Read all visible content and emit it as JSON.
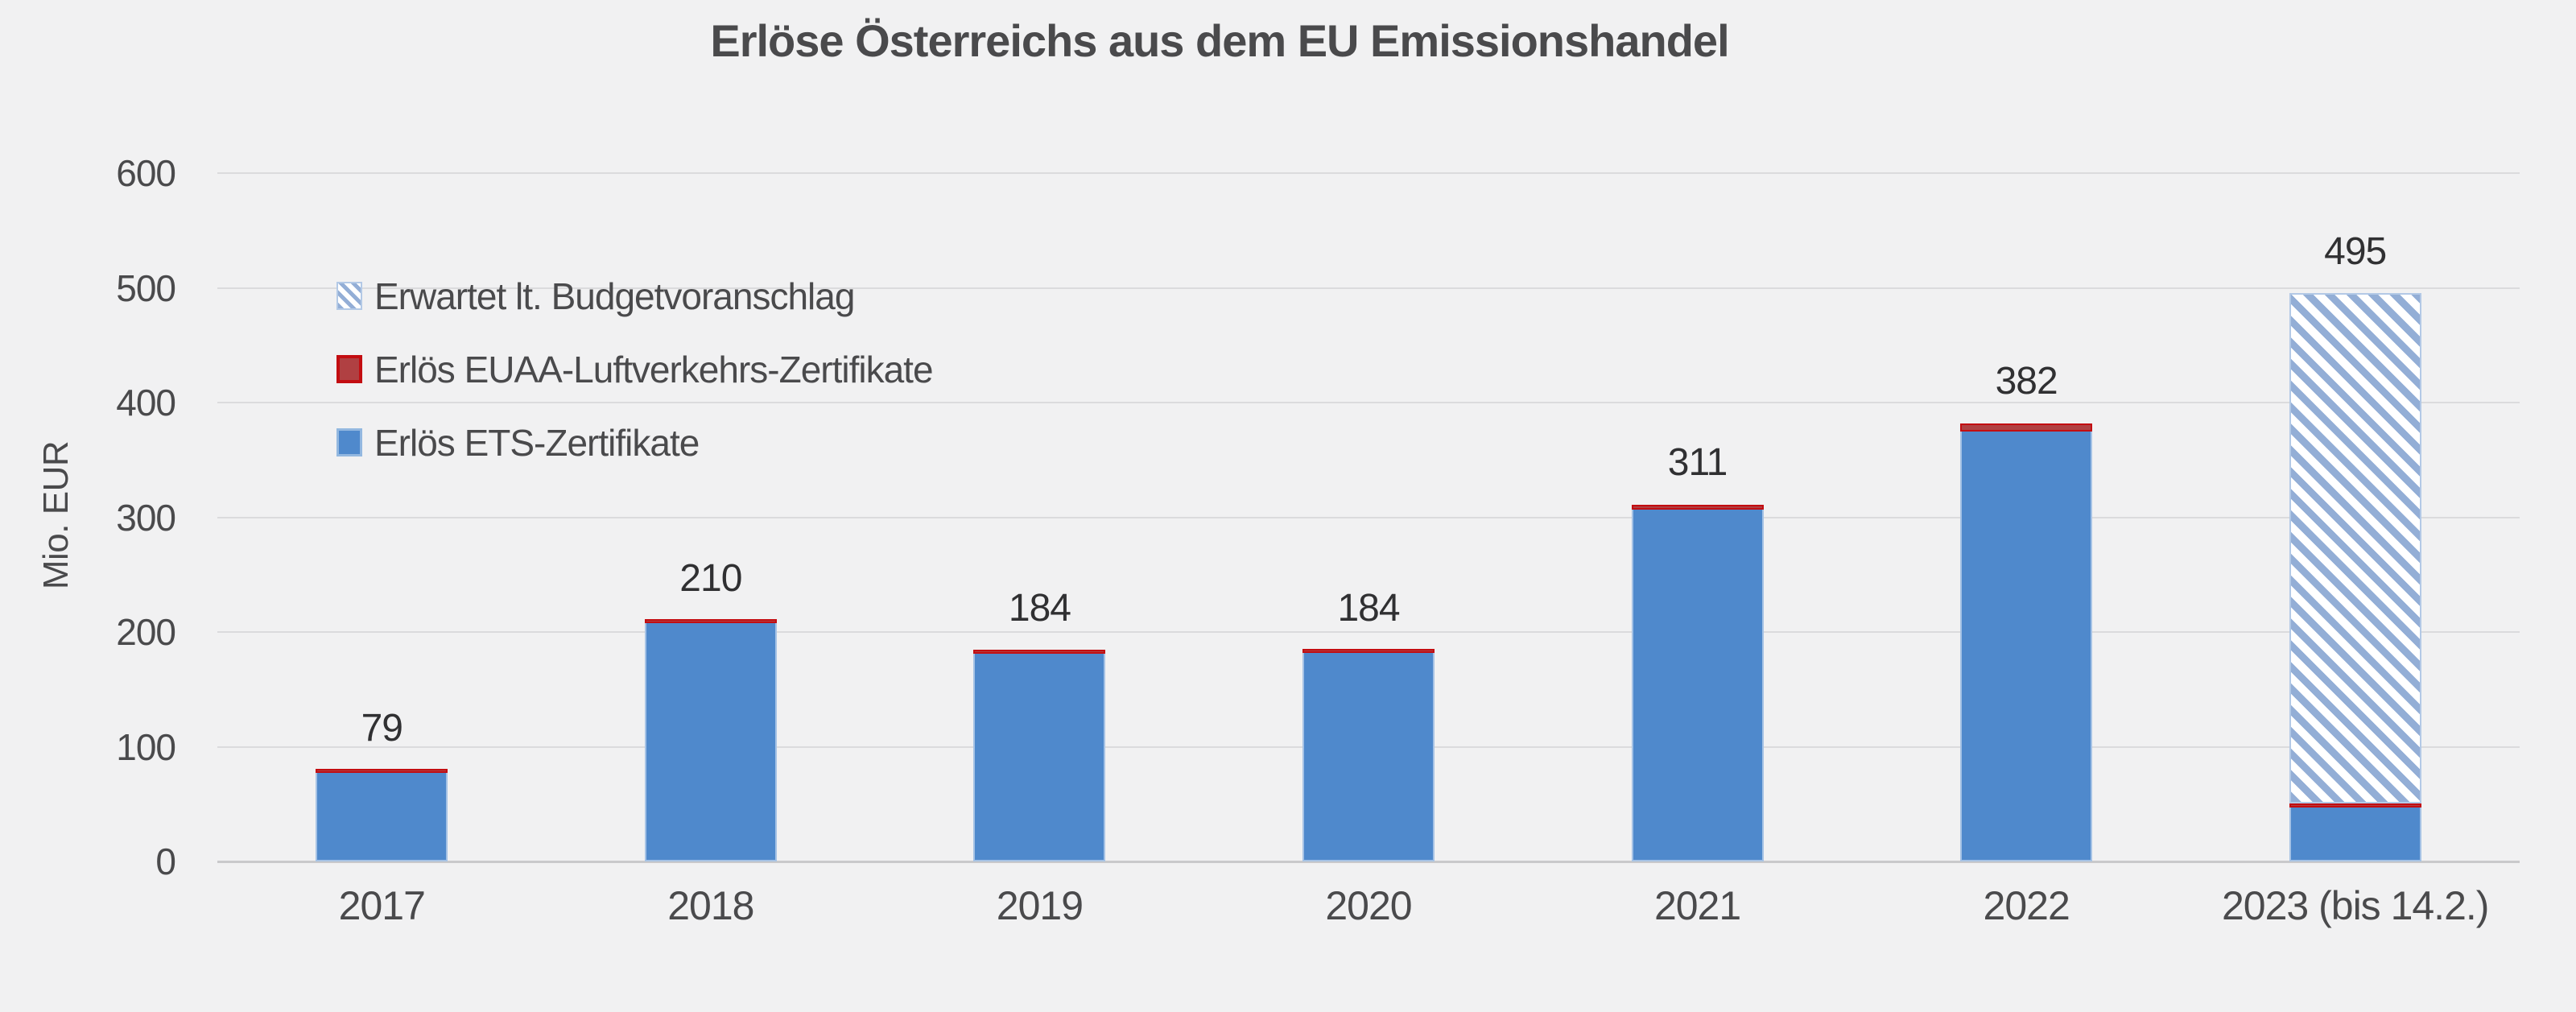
{
  "title": "Erlöse Österreichs aus dem EU Emissionshandel",
  "y_axis": {
    "label": "Mio. EUR",
    "ticks": [
      0,
      100,
      200,
      300,
      400,
      500,
      600
    ]
  },
  "legend": [
    {
      "label": "Erwartet lt. Budgetvoranschlag",
      "swatch": "hatched-blue"
    },
    {
      "label": "Erlös EUAA-Luftverkehrs-Zertifikate",
      "swatch": "red"
    },
    {
      "label": "Erlös ETS-Zertifikate",
      "swatch": "blue"
    }
  ],
  "colors": {
    "background": "#f1f1f2",
    "ets_blue": "#4f89cc",
    "euaa_red": "#c30d11",
    "expected_hatch_blue": "#93aed6",
    "grid": "#dbdbdd",
    "text": "#4a4a4c"
  },
  "chart_data": {
    "type": "bar",
    "stacked": true,
    "title": "Erlöse Österreichs aus dem EU Emissionshandel",
    "xlabel": "",
    "ylabel": "Mio. EUR",
    "ylim": [
      0,
      600
    ],
    "yticks": [
      0,
      100,
      200,
      300,
      400,
      500,
      600
    ],
    "grid": "horizontal",
    "legend_position": "upper-left-inside",
    "categories": [
      "2017",
      "2018",
      "2019",
      "2020",
      "2021",
      "2022",
      "2023 (bis 14.2.)"
    ],
    "series": [
      {
        "name": "Erlös ETS-Zertifikate",
        "style": "solid-blue",
        "values": [
          77,
          208,
          181,
          182,
          307,
          375,
          47
        ]
      },
      {
        "name": "Erlös EUAA-Luftverkehrs-Zertifikate",
        "style": "solid-red",
        "values": [
          2,
          2,
          3,
          2,
          4,
          7,
          3
        ]
      },
      {
        "name": "Erwartet lt. Budgetvoranschlag",
        "style": "hatched-blue",
        "values": [
          0,
          0,
          0,
          0,
          0,
          0,
          445
        ]
      }
    ],
    "totals_labels": [
      "79",
      "210",
      "184",
      "184",
      "311",
      "382",
      "495"
    ]
  }
}
